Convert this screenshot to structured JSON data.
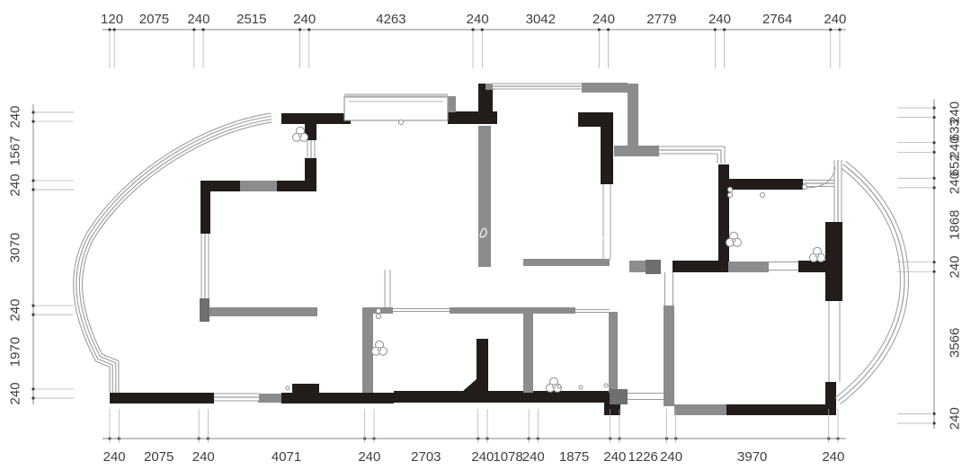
{
  "colors": {
    "bg": "#ffffff",
    "wall_black": "#221d1a",
    "wall_gray": "#8c8c8c",
    "wall_dark": "#6f6f6f",
    "wall_light": "#c9c9c9",
    "window_line": "#9b9b9b",
    "dim_line": "#8a8a8a",
    "dim_text": "#3f3f3f"
  },
  "dimensions": {
    "top": [
      "120",
      "2075",
      "240",
      "2515",
      "240",
      "4263",
      "240",
      "3042",
      "240",
      "2779",
      "240",
      "2764",
      "240"
    ],
    "bottom": [
      "240",
      "2075",
      "240",
      "4071",
      "240",
      "2703",
      "240",
      "1078",
      "240",
      "1875",
      "240",
      "1226",
      "240",
      "3970",
      "240"
    ],
    "left": [
      "240",
      "1567",
      "240",
      "3070",
      "240",
      "1970",
      "240"
    ],
    "right": [
      "240",
      "633",
      "240",
      "652",
      "240",
      "1868",
      "240",
      "3566",
      "240"
    ]
  }
}
